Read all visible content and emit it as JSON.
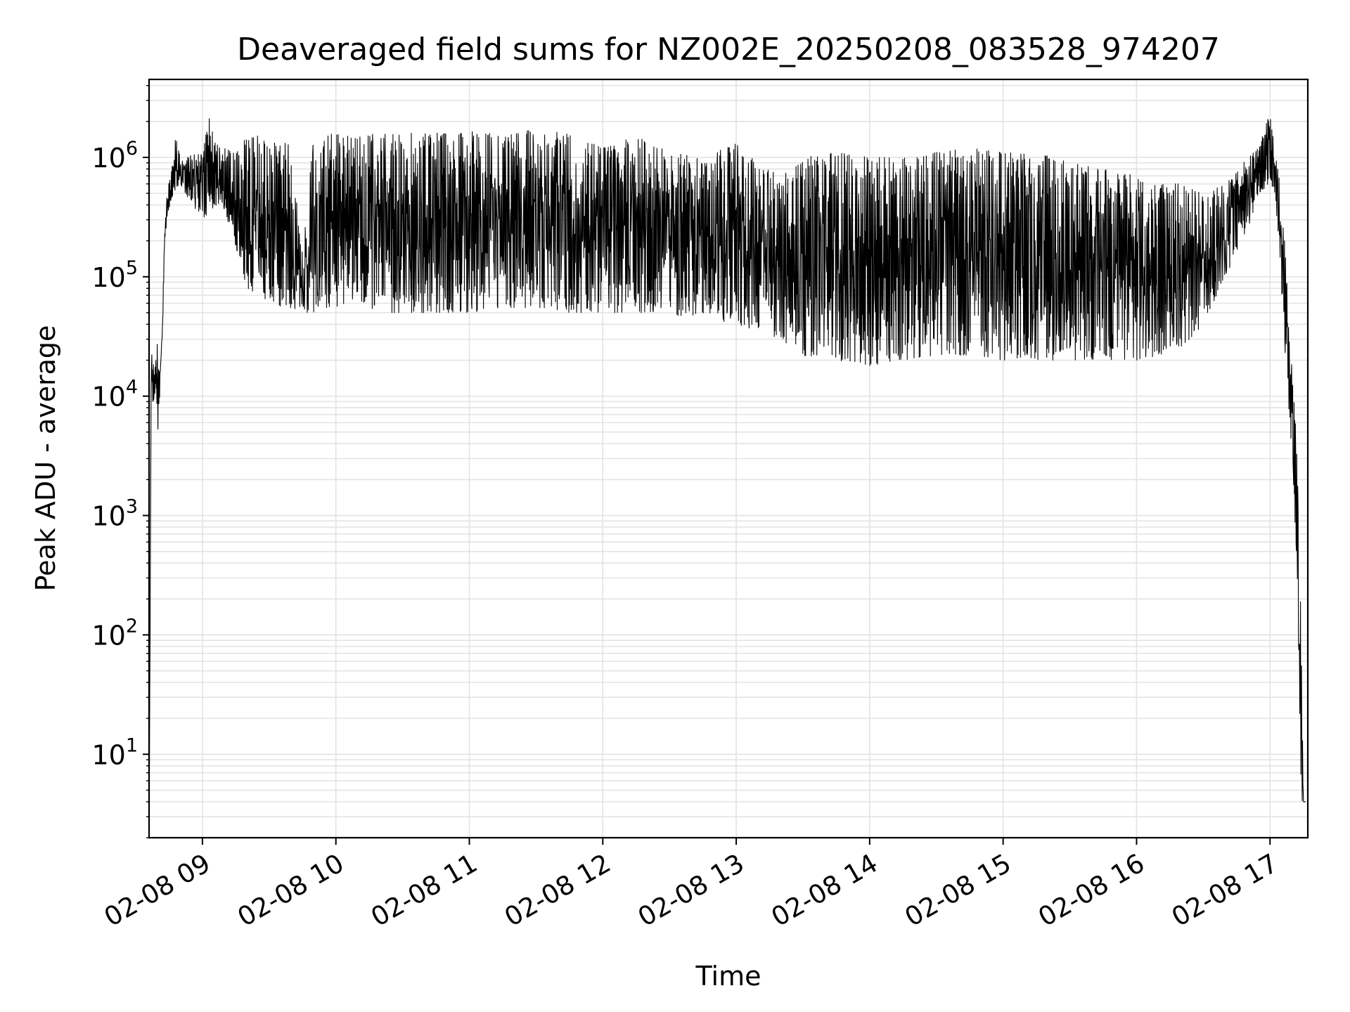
{
  "chart_data": {
    "type": "line",
    "title": "Deaveraged field sums for NZ002E_20250208_083528_974207",
    "xlabel": "Time",
    "ylabel": "Peak ADU - average",
    "y_scale": "log",
    "grid": true,
    "line_color": "#000000",
    "xlim": [
      "2025-02-08 08:36",
      "2025-02-08 17:17"
    ],
    "ylim": [
      2,
      4500000
    ],
    "x_ticks": [
      "2025-02-08 09:00",
      "2025-02-08 10:00",
      "2025-02-08 11:00",
      "2025-02-08 12:00",
      "2025-02-08 13:00",
      "2025-02-08 14:00",
      "2025-02-08 15:00",
      "2025-02-08 16:00",
      "2025-02-08 17:00"
    ],
    "x_tick_labels": [
      "02-08 09",
      "02-08 10",
      "02-08 11",
      "02-08 12",
      "02-08 13",
      "02-08 14",
      "02-08 15",
      "02-08 16",
      "02-08 17"
    ],
    "y_ticks": [
      10,
      100,
      1000,
      10000,
      100000,
      1000000
    ],
    "y_tick_labels": [
      {
        "base": "10",
        "exp": "1"
      },
      {
        "base": "10",
        "exp": "2"
      },
      {
        "base": "10",
        "exp": "3"
      },
      {
        "base": "10",
        "exp": "4"
      },
      {
        "base": "10",
        "exp": "5"
      },
      {
        "base": "10",
        "exp": "6"
      }
    ],
    "series": [
      {
        "x": [
          "2025-02-08 08:36",
          "2025-02-08 08:37",
          "2025-02-08 08:38",
          "2025-02-08 08:39",
          "2025-02-08 08:40",
          "2025-02-08 08:41",
          "2025-02-08 08:42",
          "2025-02-08 08:43",
          "2025-02-08 08:44",
          "2025-02-08 08:46",
          "2025-02-08 08:48",
          "2025-02-08 08:50",
          "2025-02-08 08:52",
          "2025-02-08 08:54",
          "2025-02-08 08:57",
          "2025-02-08 09:00",
          "2025-02-08 09:03",
          "2025-02-08 09:06",
          "2025-02-08 09:10",
          "2025-02-08 09:15",
          "2025-02-08 09:20",
          "2025-02-08 09:25",
          "2025-02-08 09:30",
          "2025-02-08 09:35",
          "2025-02-08 09:40",
          "2025-02-08 09:45",
          "2025-02-08 09:50",
          "2025-02-08 09:55",
          "2025-02-08 10:00",
          "2025-02-08 10:10",
          "2025-02-08 10:20",
          "2025-02-08 10:30",
          "2025-02-08 10:45",
          "2025-02-08 11:00",
          "2025-02-08 11:15",
          "2025-02-08 11:30",
          "2025-02-08 11:45",
          "2025-02-08 12:00",
          "2025-02-08 12:15",
          "2025-02-08 12:30",
          "2025-02-08 12:45",
          "2025-02-08 13:00",
          "2025-02-08 13:10",
          "2025-02-08 13:20",
          "2025-02-08 13:30",
          "2025-02-08 13:45",
          "2025-02-08 14:00",
          "2025-02-08 14:15",
          "2025-02-08 14:30",
          "2025-02-08 14:45",
          "2025-02-08 15:00",
          "2025-02-08 15:15",
          "2025-02-08 15:30",
          "2025-02-08 15:45",
          "2025-02-08 16:00",
          "2025-02-08 16:10",
          "2025-02-08 16:20",
          "2025-02-08 16:30",
          "2025-02-08 16:40",
          "2025-02-08 16:50",
          "2025-02-08 16:55",
          "2025-02-08 17:00",
          "2025-02-08 17:02",
          "2025-02-08 17:04",
          "2025-02-08 17:06",
          "2025-02-08 17:08",
          "2025-02-08 17:10",
          "2025-02-08 17:12",
          "2025-02-08 17:13",
          "2025-02-08 17:14",
          "2025-02-08 17:15",
          "2025-02-08 17:16"
        ],
        "low": [
          2,
          9000,
          9000,
          10000,
          5000,
          8000,
          30000,
          150000,
          300000,
          450000,
          550000,
          600000,
          500000,
          450000,
          350000,
          300000,
          350000,
          400000,
          350000,
          180000,
          80000,
          70000,
          60000,
          55000,
          55000,
          50000,
          50000,
          55000,
          55000,
          60000,
          50000,
          50000,
          50000,
          50000,
          55000,
          55000,
          50000,
          50000,
          50000,
          48000,
          45000,
          40000,
          35000,
          30000,
          22000,
          20000,
          18000,
          20000,
          22000,
          22000,
          20000,
          20000,
          20000,
          20000,
          20000,
          22000,
          25000,
          40000,
          100000,
          250000,
          500000,
          600000,
          500000,
          200000,
          40000,
          10000,
          3000,
          400,
          50,
          4,
          4,
          4
        ],
        "high": [
          2,
          23000,
          23000,
          21000,
          31000,
          15000,
          60000,
          250000,
          500000,
          800000,
          1500000,
          1000000,
          1050000,
          1100000,
          1050000,
          1100000,
          2200000,
          1300000,
          1200000,
          1100000,
          1500000,
          1700000,
          1200000,
          1500000,
          1200000,
          150000,
          1500000,
          1600000,
          1550000,
          1550000,
          1600000,
          1600000,
          1600000,
          1650000,
          1600000,
          1700000,
          1600000,
          1200000,
          1500000,
          1100000,
          1000000,
          1300000,
          900000,
          700000,
          1000000,
          1100000,
          1000000,
          1000000,
          1100000,
          1200000,
          1100000,
          1100000,
          900000,
          800000,
          700000,
          600000,
          600000,
          500000,
          600000,
          1000000,
          1200000,
          2400000,
          1200000,
          700000,
          300000,
          80000,
          15000,
          5000,
          1000,
          100,
          4,
          4
        ]
      }
    ]
  }
}
